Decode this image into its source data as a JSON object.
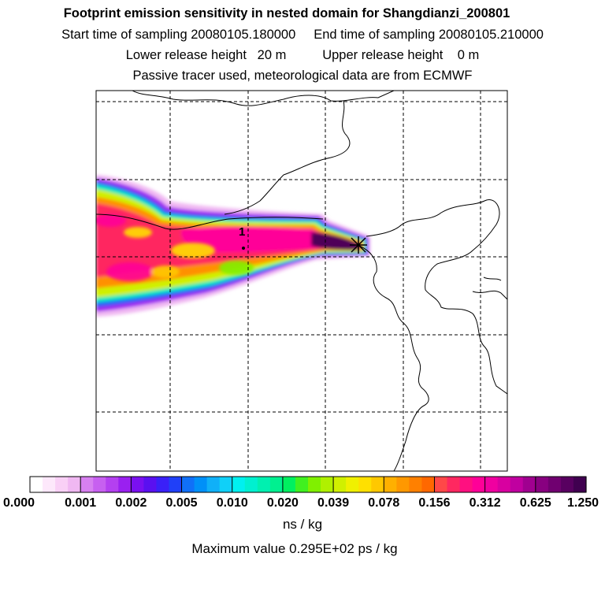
{
  "header": {
    "title": "Footprint emission sensitivity in nested domain for Shangdianzi_200801",
    "sampling_line": "Start time of sampling 20080105.180000     End time of sampling 20080105.210000",
    "release_line": "Lower release height   20 m          Upper release height    0 m",
    "tracer_line": "Passive tracer used, meteorological data are from ECMWF"
  },
  "map": {
    "station_label": "1"
  },
  "colorbar": {
    "labels": [
      "0.000",
      "0.001",
      "0.002",
      "0.005",
      "0.010",
      "0.020",
      "0.039",
      "0.078",
      "0.156",
      "0.312",
      "0.625",
      "1.250"
    ],
    "colors": [
      "#ffffff",
      "#fde8fb",
      "#f9d0f6",
      "#f0b8f2",
      "#d780f0",
      "#c760f0",
      "#b440f0",
      "#9a20f0",
      "#7a10f0",
      "#5a10f0",
      "#3a20f8",
      "#2040f8",
      "#1070f8",
      "#0090f8",
      "#10b0f8",
      "#10d0f8",
      "#00f0f0",
      "#00f0d0",
      "#00f0b0",
      "#00f090",
      "#00f060",
      "#40f020",
      "#80f000",
      "#b0f000",
      "#d0f000",
      "#f0f000",
      "#ffe000",
      "#ffc800",
      "#ffb000",
      "#ff9800",
      "#ff8000",
      "#ff6800",
      "#ff4848",
      "#ff2860",
      "#ff1080",
      "#ff0098",
      "#f000a0",
      "#d800a0",
      "#c000a0",
      "#a00090",
      "#880080",
      "#700070",
      "#580060",
      "#400050"
    ],
    "units": "ns / kg",
    "max_value_text": "Maximum value  0.295E+02 ps / kg"
  }
}
